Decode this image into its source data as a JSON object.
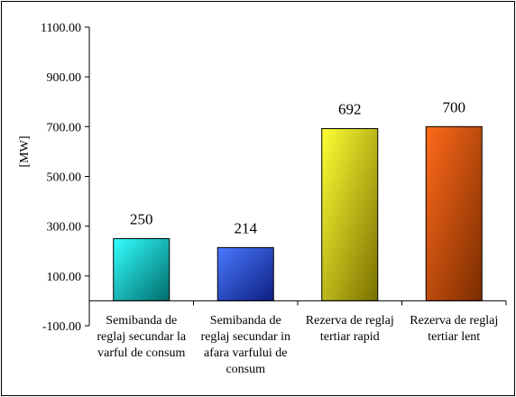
{
  "chart_data": {
    "type": "bar",
    "categories": [
      [
        "Semibanda de",
        "reglaj secundar la",
        "varful de consum"
      ],
      [
        "Semibanda de",
        "reglaj secundar in",
        "afara varfului de",
        "consum"
      ],
      [
        "Rezerva de reglaj",
        "tertiar rapid"
      ],
      [
        "Rezerva de reglaj",
        "tertiar lent"
      ]
    ],
    "values": [
      250,
      214,
      692,
      700
    ],
    "data_labels": [
      "250",
      "214",
      "692",
      "700"
    ],
    "ylabel": "[MW]",
    "ylim": [
      -100,
      1100
    ],
    "yticks": [
      -100,
      100,
      300,
      500,
      700,
      900,
      1100
    ],
    "ytick_labels": [
      "-100.00",
      "100.00",
      "300.00",
      "500.00",
      "700.00",
      "900.00",
      "1100.00"
    ],
    "grid": false,
    "legend": "none",
    "bar_colors": [
      {
        "light": "#33ffff",
        "dark": "#006b6b"
      },
      {
        "light": "#4a78ff",
        "dark": "#0d1f80"
      },
      {
        "light": "#ffff33",
        "dark": "#7a7000"
      },
      {
        "light": "#ff6a1a",
        "dark": "#7a2c00"
      }
    ]
  }
}
